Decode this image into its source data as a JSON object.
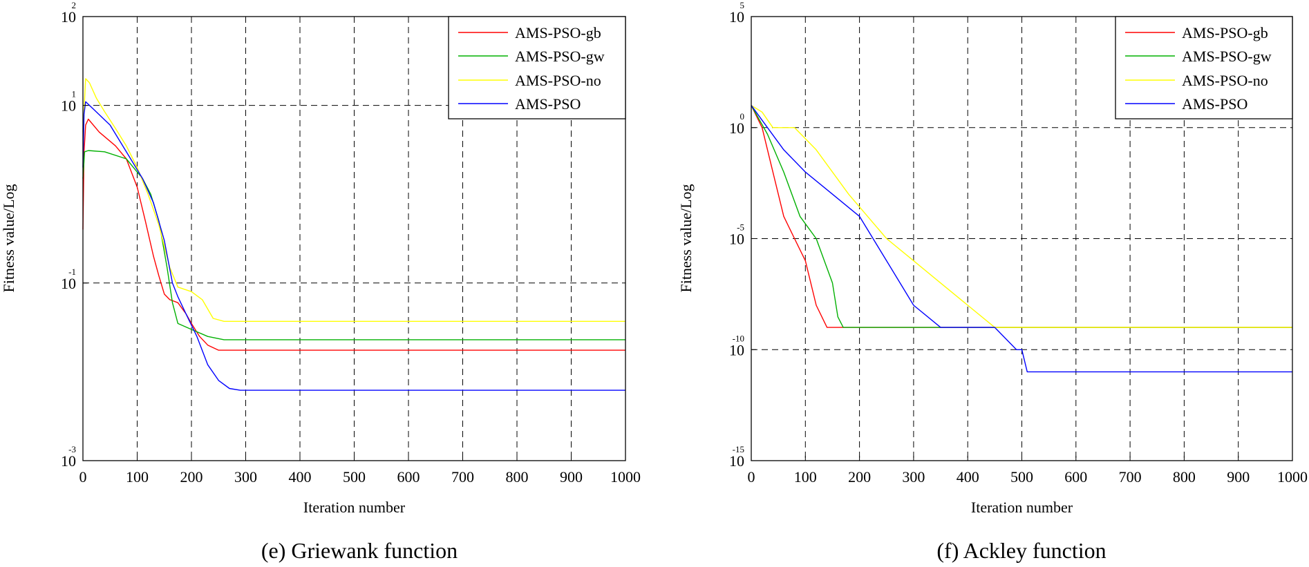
{
  "chart_data": [
    {
      "type": "line",
      "caption": "(e) Griewank function",
      "xlabel": "Iteration number",
      "ylabel": "Fitness value/Log",
      "xscale": "linear",
      "yscale": "log",
      "xlim": [
        0,
        1000
      ],
      "ylim": [
        0.001,
        100
      ],
      "xticks": [
        0,
        100,
        200,
        300,
        400,
        500,
        600,
        700,
        800,
        900,
        1000
      ],
      "yticks": [
        {
          "value": 100,
          "base": "10",
          "exp": "2"
        },
        {
          "value": 10,
          "base": "10",
          "exp": "1"
        },
        {
          "value": 0.1,
          "base": "10",
          "exp": "-1"
        },
        {
          "value": 0.001,
          "base": "10",
          "exp": "-3"
        }
      ],
      "grid": true,
      "legend_position": "top-right",
      "series": [
        {
          "name": "AMS-PSO-gb",
          "color": "#ff0000",
          "x": [
            0,
            2,
            5,
            10,
            30,
            60,
            80,
            100,
            115,
            130,
            140,
            150,
            160,
            175,
            190,
            200,
            215,
            230,
            250,
            1000
          ],
          "y": [
            0.4,
            3.0,
            6.0,
            7.0,
            5.0,
            3.5,
            2.5,
            1.2,
            0.5,
            0.2,
            0.12,
            0.075,
            0.065,
            0.06,
            0.045,
            0.035,
            0.025,
            0.02,
            0.0175,
            0.0175
          ]
        },
        {
          "name": "AMS-PSO-gw",
          "color": "#00b000",
          "x": [
            0,
            3,
            10,
            40,
            80,
            110,
            125,
            140,
            155,
            165,
            175,
            200,
            230,
            260,
            1000
          ],
          "y": [
            1.5,
            3.0,
            3.1,
            3.0,
            2.5,
            1.5,
            1.0,
            0.5,
            0.15,
            0.06,
            0.035,
            0.03,
            0.025,
            0.023,
            0.023
          ]
        },
        {
          "name": "AMS-PSO-no",
          "color": "#ffff00",
          "x": [
            0,
            5,
            12,
            25,
            40,
            60,
            80,
            100,
            120,
            140,
            160,
            175,
            200,
            220,
            240,
            260,
            1000
          ],
          "y": [
            5.0,
            20.0,
            18.0,
            12.0,
            8.5,
            5.5,
            3.5,
            2.0,
            1.0,
            0.45,
            0.15,
            0.09,
            0.08,
            0.065,
            0.04,
            0.037,
            0.037
          ]
        },
        {
          "name": "AMS-PSO",
          "color": "#0000ff",
          "x": [
            0,
            2,
            5,
            20,
            50,
            80,
            110,
            130,
            150,
            165,
            175,
            190,
            210,
            230,
            250,
            270,
            290,
            1000
          ],
          "y": [
            2.0,
            8.0,
            11.0,
            9.0,
            6.0,
            3.0,
            1.5,
            0.8,
            0.3,
            0.1,
            0.07,
            0.045,
            0.025,
            0.012,
            0.008,
            0.0065,
            0.0062,
            0.0062
          ]
        }
      ]
    },
    {
      "type": "line",
      "caption": "(f) Ackley function",
      "xlabel": "Iteration number",
      "ylabel": "Fitness value/Log",
      "xscale": "linear",
      "yscale": "log",
      "xlim": [
        0,
        1000
      ],
      "ylim": [
        1e-15,
        100000
      ],
      "xticks": [
        0,
        100,
        200,
        300,
        400,
        500,
        600,
        700,
        800,
        900,
        1000
      ],
      "yticks": [
        {
          "value": 100000,
          "base": "10",
          "exp": "5"
        },
        {
          "value": 1,
          "base": "10",
          "exp": "0"
        },
        {
          "value": 1e-05,
          "base": "10",
          "exp": "-5"
        },
        {
          "value": 1e-10,
          "base": "10",
          "exp": "-10"
        },
        {
          "value": 1e-15,
          "base": "10",
          "exp": "-15"
        }
      ],
      "grid": true,
      "legend_position": "top-right",
      "series": [
        {
          "name": "AMS-PSO-gb",
          "color": "#ff0000",
          "x": [
            0,
            20,
            40,
            60,
            80,
            100,
            120,
            140,
            160,
            200,
            330,
            460,
            1000
          ],
          "y": [
            10.0,
            1.0,
            0.01,
            0.0001,
            1e-05,
            1e-06,
            1e-08,
            1e-09,
            1e-09,
            1e-09,
            1e-09,
            1e-09,
            1e-09
          ]
        },
        {
          "name": "AMS-PSO-gw",
          "color": "#00b000",
          "x": [
            0,
            30,
            60,
            90,
            120,
            150,
            160,
            170,
            1000
          ],
          "y": [
            10.0,
            0.5,
            0.01,
            0.0001,
            1e-05,
            1e-07,
            3e-09,
            1e-09,
            1e-09
          ]
        },
        {
          "name": "AMS-PSO-no",
          "color": "#ffff00",
          "x": [
            0,
            20,
            40,
            80,
            120,
            180,
            250,
            300,
            350,
            400,
            450,
            500,
            1000
          ],
          "y": [
            10.0,
            5.0,
            1.0,
            1.0,
            0.1,
            0.001,
            1e-05,
            1e-06,
            1e-07,
            1e-08,
            1e-09,
            1e-09,
            1e-09
          ]
        },
        {
          "name": "AMS-PSO",
          "color": "#0000ff",
          "x": [
            0,
            30,
            60,
            100,
            150,
            200,
            250,
            300,
            350,
            400,
            450,
            490,
            500,
            510,
            1000
          ],
          "y": [
            10.0,
            1.0,
            0.1,
            0.01,
            0.001,
            0.0001,
            1e-06,
            1e-08,
            1e-09,
            1e-09,
            1e-09,
            1e-10,
            1e-10,
            1e-11,
            1e-11
          ]
        }
      ]
    }
  ]
}
